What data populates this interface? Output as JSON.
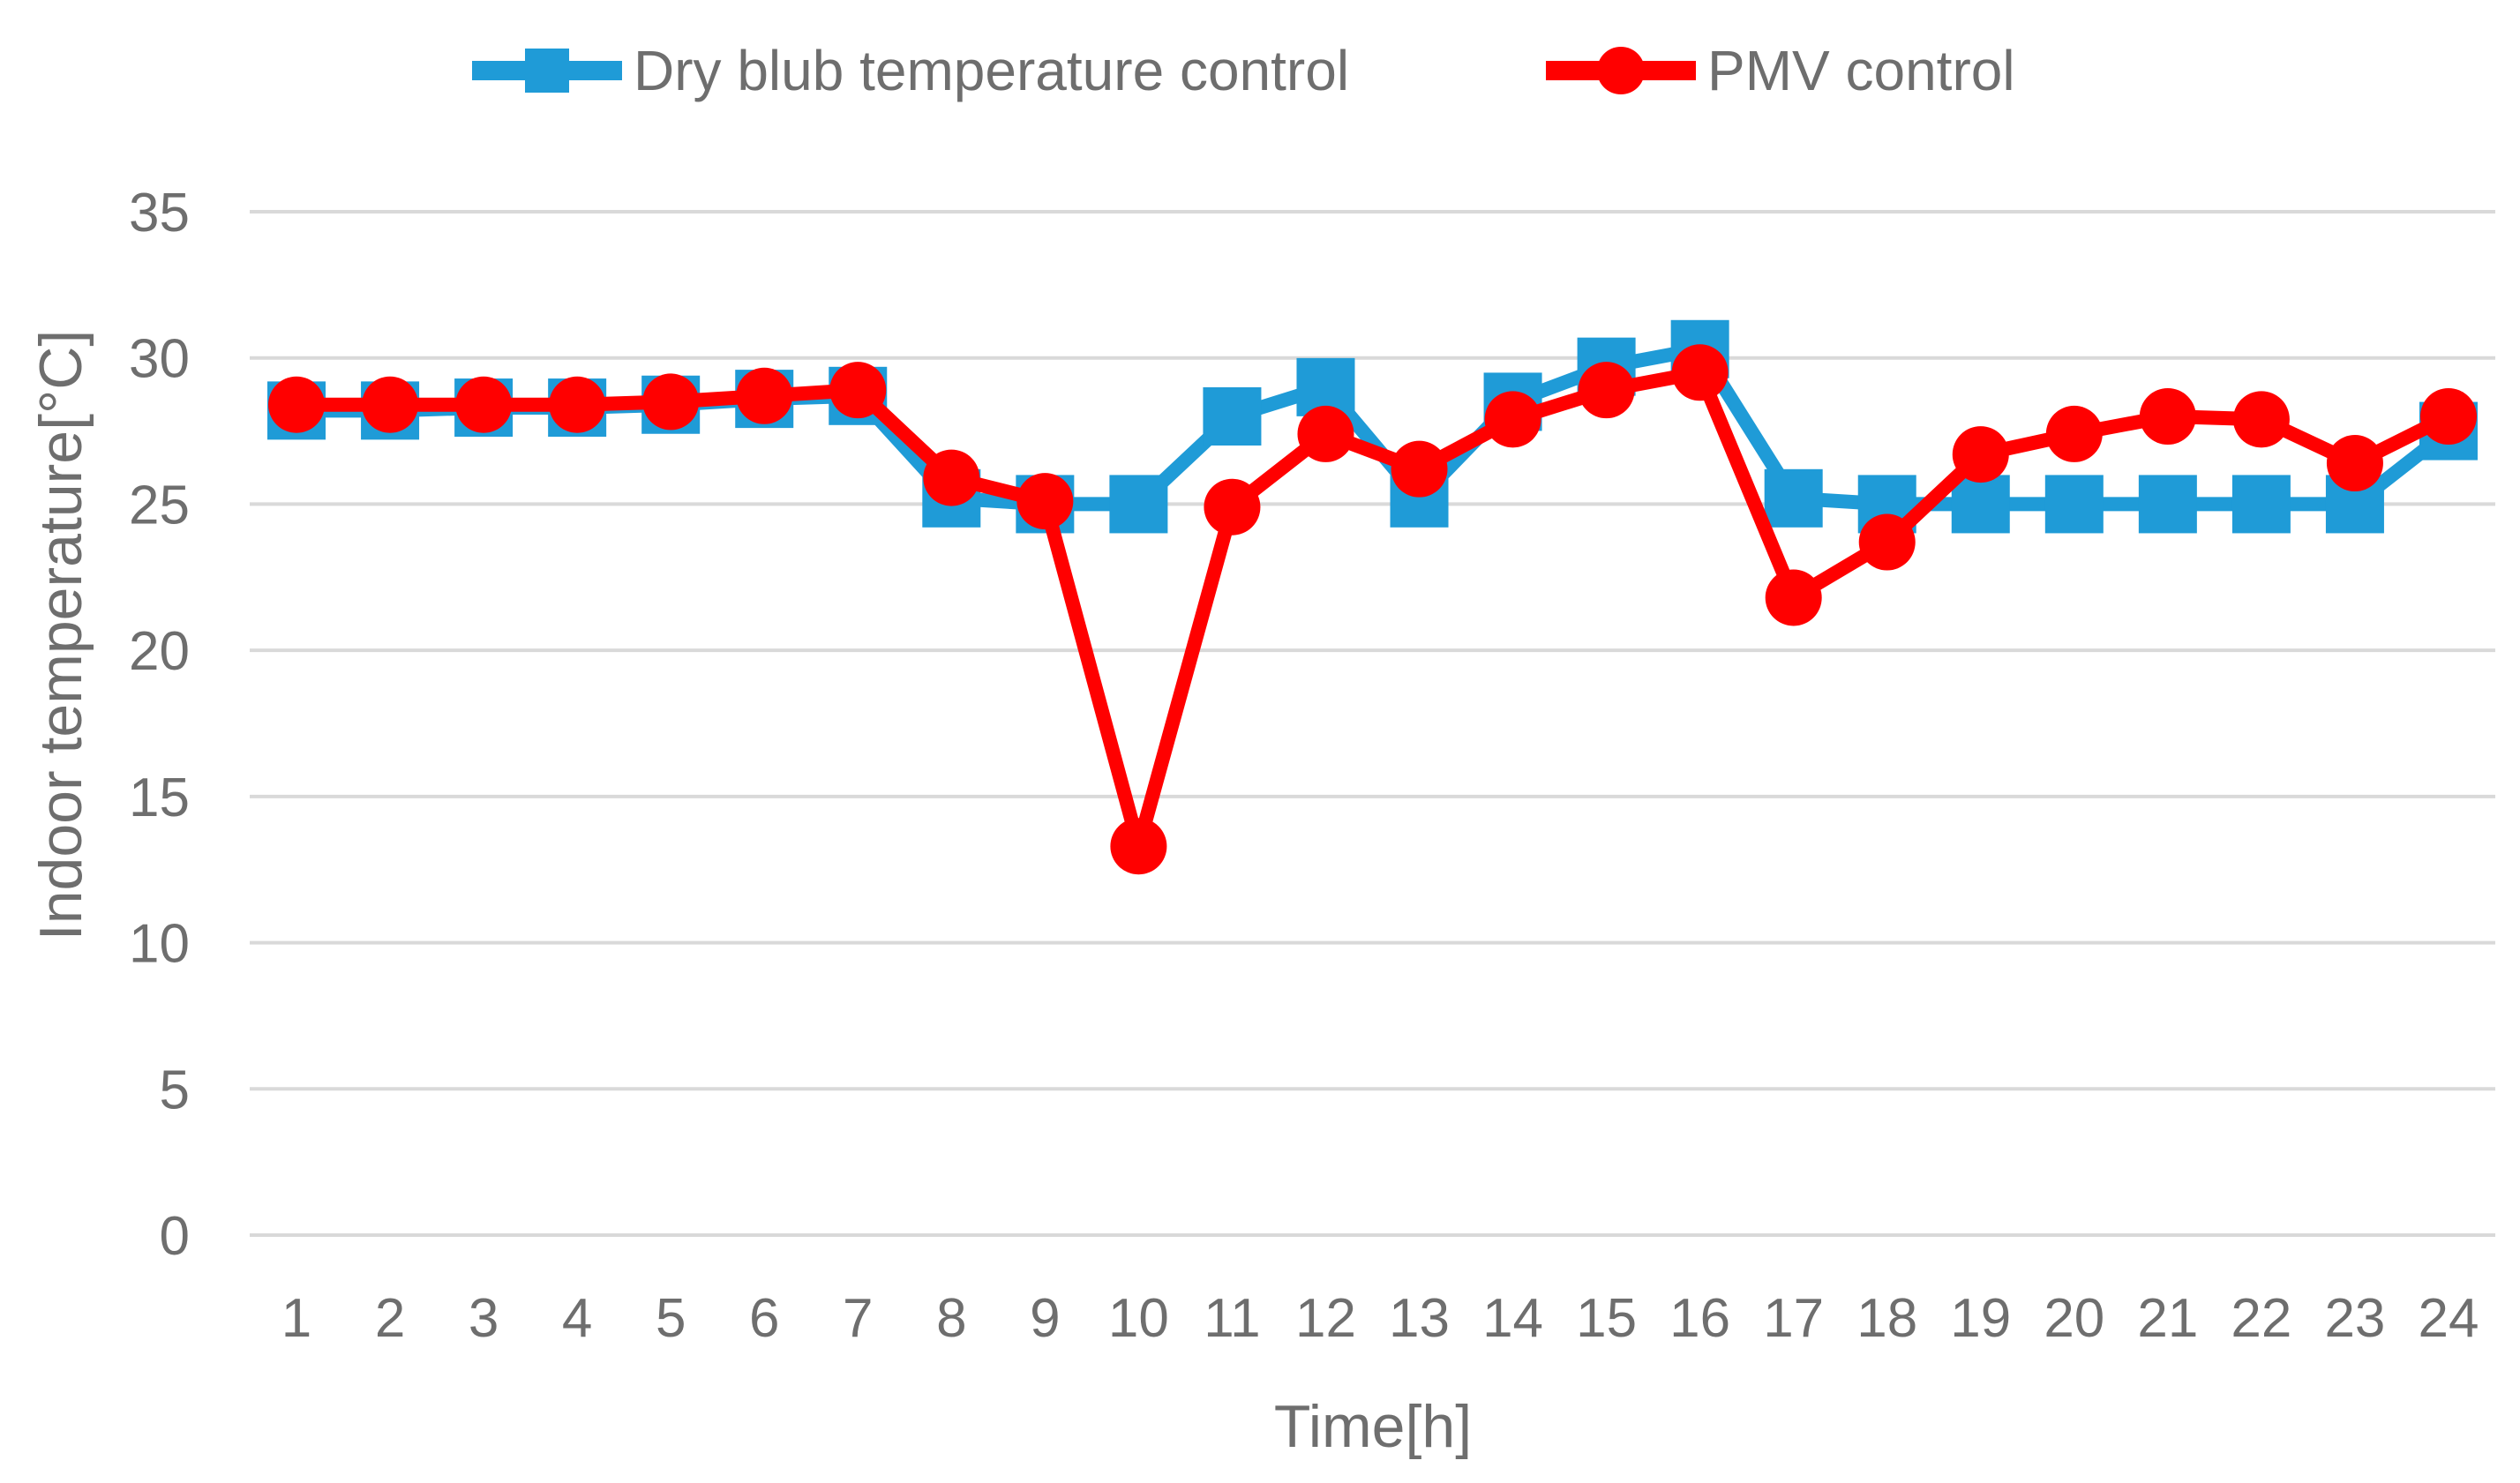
{
  "chart_data": {
    "type": "line",
    "title": "",
    "xlabel": "Time[h]",
    "ylabel": "Indoor temperature[°C]",
    "categories": [
      "1",
      "2",
      "3",
      "4",
      "5",
      "6",
      "7",
      "8",
      "9",
      "10",
      "11",
      "12",
      "13",
      "14",
      "15",
      "16",
      "17",
      "18",
      "19",
      "20",
      "21",
      "22",
      "23",
      "24"
    ],
    "ylim": [
      0,
      35
    ],
    "yticks": [
      "0",
      "5",
      "10",
      "15",
      "20",
      "25",
      "30",
      "35"
    ],
    "grid": true,
    "legend_position": "top-center",
    "series": [
      {
        "name": "Dry blub temperature control",
        "color": "#1f9bd7",
        "marker": "square",
        "values": [
          28.2,
          28.2,
          28.3,
          28.3,
          28.4,
          28.6,
          28.7,
          25.2,
          25.0,
          25.0,
          28.0,
          29.0,
          25.2,
          28.5,
          29.7,
          30.3,
          25.2,
          25.0,
          25.0,
          25.0,
          25.0,
          25.0,
          25.0,
          27.5
        ]
      },
      {
        "name": "PMV control",
        "color": "#ff0000",
        "marker": "circle",
        "values": [
          28.4,
          28.4,
          28.4,
          28.4,
          28.5,
          28.7,
          28.9,
          25.9,
          25.1,
          13.3,
          24.9,
          27.4,
          26.2,
          27.9,
          28.9,
          29.5,
          21.8,
          23.7,
          26.7,
          27.4,
          28.0,
          27.9,
          26.4,
          28.0
        ]
      }
    ]
  }
}
